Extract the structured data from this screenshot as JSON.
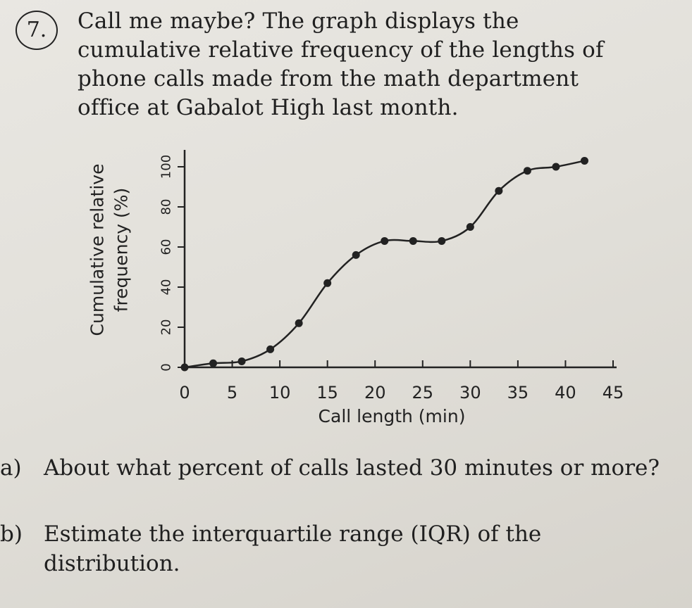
{
  "problem": {
    "number": "7.",
    "text": "Call me maybe? The graph displays the cumulative relative frequency of the lengths of phone calls made from the math department office at Gabalot High last month."
  },
  "chart_data": {
    "type": "line",
    "xlabel": "Call length (min)",
    "ylabel_line1": "Cumulative relative",
    "ylabel_line2": "frequency (%)",
    "x_ticks": [
      "0",
      "5",
      "10",
      "15",
      "20",
      "25",
      "30",
      "35",
      "40",
      "45"
    ],
    "y_ticks": [
      "0",
      "20",
      "40",
      "60",
      "80",
      "100"
    ],
    "xlim": [
      0,
      45
    ],
    "ylim": [
      0,
      100
    ],
    "grid": false,
    "series": [
      {
        "x": [
          0,
          3,
          6,
          9,
          12,
          15,
          18,
          21,
          24,
          27,
          30,
          33,
          36,
          39,
          42
        ],
        "y": [
          0,
          2,
          3,
          9,
          22,
          42,
          56,
          63,
          63,
          63,
          70,
          88,
          98,
          100,
          103
        ]
      }
    ]
  },
  "questions": [
    {
      "label": "a)",
      "text": "About what percent of calls lasted 30 minutes or more?"
    },
    {
      "label": "b)",
      "text": "Estimate the interquartile range (IQR) of the distribution."
    }
  ]
}
